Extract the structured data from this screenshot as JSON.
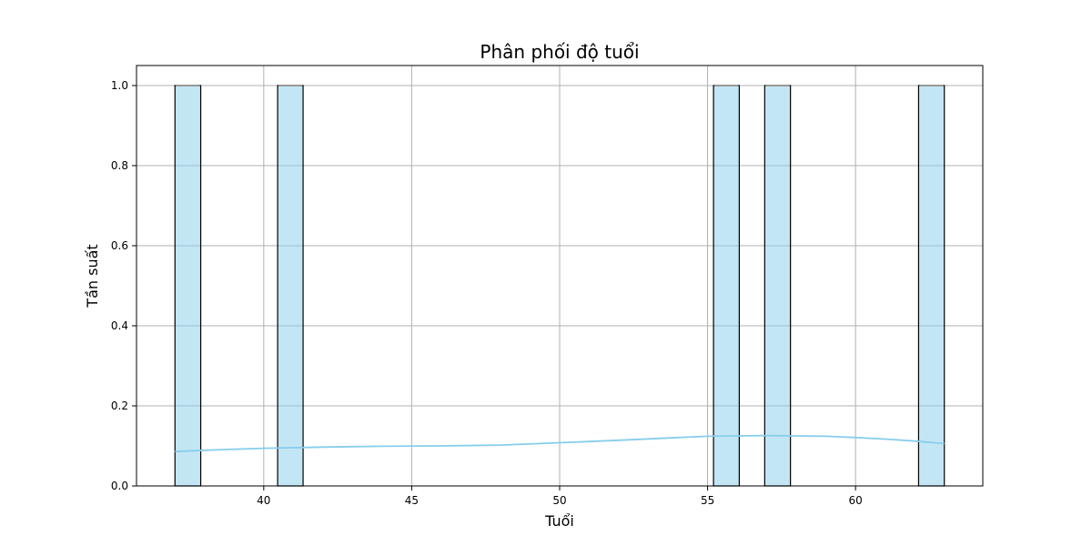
{
  "chart_data": {
    "type": "bar",
    "title": "Phân phối độ tuổi",
    "xlabel": "Tuổi",
    "ylabel": "Tần suất",
    "xlim": [
      35.7,
      64.3
    ],
    "ylim": [
      0,
      1.05
    ],
    "xticks": [
      40,
      45,
      50,
      55,
      60
    ],
    "xtick_labels": [
      "40",
      "45",
      "50",
      "55",
      "60"
    ],
    "yticks": [
      0.0,
      0.2,
      0.4,
      0.6,
      0.8,
      1.0
    ],
    "ytick_labels": [
      "0.0",
      "0.2",
      "0.4",
      "0.6",
      "0.8",
      "1.0"
    ],
    "grid": true,
    "bars": [
      {
        "x0": 37.0,
        "x1": 37.87,
        "value": 1.0
      },
      {
        "x0": 40.47,
        "x1": 41.33,
        "value": 1.0
      },
      {
        "x0": 55.2,
        "x1": 56.07,
        "value": 1.0
      },
      {
        "x0": 56.93,
        "x1": 57.8,
        "value": 1.0
      },
      {
        "x0": 62.13,
        "x1": 63.0,
        "value": 1.0
      }
    ],
    "kde": {
      "x": [
        37,
        38,
        40,
        42,
        44,
        46,
        48,
        50,
        52,
        54,
        55,
        56,
        57,
        58,
        59,
        60,
        61,
        62,
        63
      ],
      "y": [
        0.086,
        0.089,
        0.094,
        0.097,
        0.099,
        0.1,
        0.102,
        0.108,
        0.114,
        0.121,
        0.124,
        0.125,
        0.126,
        0.125,
        0.124,
        0.121,
        0.117,
        0.112,
        0.106
      ]
    },
    "colors": {
      "bar_fill": "#87ceeb",
      "kde_line": "#87ceeb"
    }
  }
}
